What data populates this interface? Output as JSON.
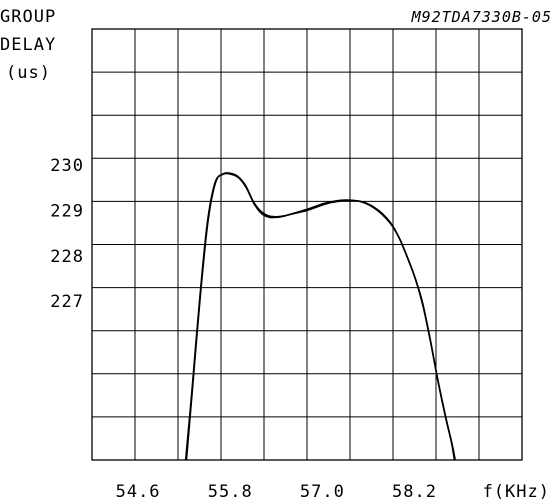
{
  "chart_data": {
    "type": "line",
    "title": "M92TDA7330B-05",
    "ylabel_lines": [
      "GROUP",
      "DELAY",
      "(us)"
    ],
    "xlabel": "f(KHz)",
    "x_ticks": [
      54.6,
      55.8,
      57.0,
      58.2
    ],
    "x_tick_labels": [
      "54.6",
      "55.8",
      "57.0",
      "58.2"
    ],
    "y_ticks": [
      227,
      228,
      229,
      230
    ],
    "y_tick_labels": [
      "227",
      "228",
      "229",
      "230"
    ],
    "xlim": [
      54.0,
      59.6
    ],
    "ylim": [
      223.5,
      233.0
    ],
    "grid": true,
    "series": [
      {
        "x": [
          55.22,
          55.3,
          55.4,
          55.5,
          55.6,
          55.7,
          55.8,
          55.9,
          56.0,
          56.1,
          56.2,
          56.3,
          56.4,
          56.5,
          56.6,
          56.7,
          56.8,
          56.9,
          57.0,
          57.1,
          57.2,
          57.3,
          57.4,
          57.5,
          57.6,
          57.7,
          57.8,
          57.9,
          58.0,
          58.1,
          58.2,
          58.3,
          58.4,
          58.5,
          58.6,
          58.68,
          58.72
        ],
        "y": [
          223.5,
          225.0,
          227.0,
          228.7,
          229.6,
          229.8,
          229.82,
          229.75,
          229.55,
          229.2,
          228.98,
          228.88,
          228.86,
          228.88,
          228.92,
          228.96,
          229.0,
          229.06,
          229.12,
          229.17,
          229.2,
          229.22,
          229.22,
          229.2,
          229.14,
          229.04,
          228.9,
          228.7,
          228.4,
          228.0,
          227.55,
          227.0,
          226.2,
          225.3,
          224.5,
          223.9,
          223.5
        ]
      },
      {
        "x": [
          55.23,
          55.31,
          55.41,
          55.51,
          55.61,
          55.71,
          55.81,
          55.91,
          56.01,
          56.11,
          56.21,
          56.31,
          56.41,
          56.51,
          56.61,
          56.71,
          56.81,
          56.91,
          57.01,
          57.11,
          57.21,
          57.31,
          57.41,
          57.51,
          57.61,
          57.71,
          57.81,
          57.91,
          58.01,
          58.11,
          58.21,
          58.31,
          58.41,
          58.51,
          58.61,
          58.69,
          58.73
        ],
        "y": [
          223.5,
          225.1,
          227.1,
          228.75,
          229.62,
          229.8,
          229.8,
          229.72,
          229.5,
          229.15,
          228.93,
          228.85,
          228.85,
          228.88,
          228.93,
          228.98,
          229.03,
          229.09,
          229.15,
          229.19,
          229.22,
          229.23,
          229.22,
          229.19,
          229.12,
          229.01,
          228.86,
          228.66,
          228.36,
          227.95,
          227.5,
          226.9,
          226.1,
          225.2,
          224.4,
          223.85,
          223.5
        ]
      }
    ]
  }
}
